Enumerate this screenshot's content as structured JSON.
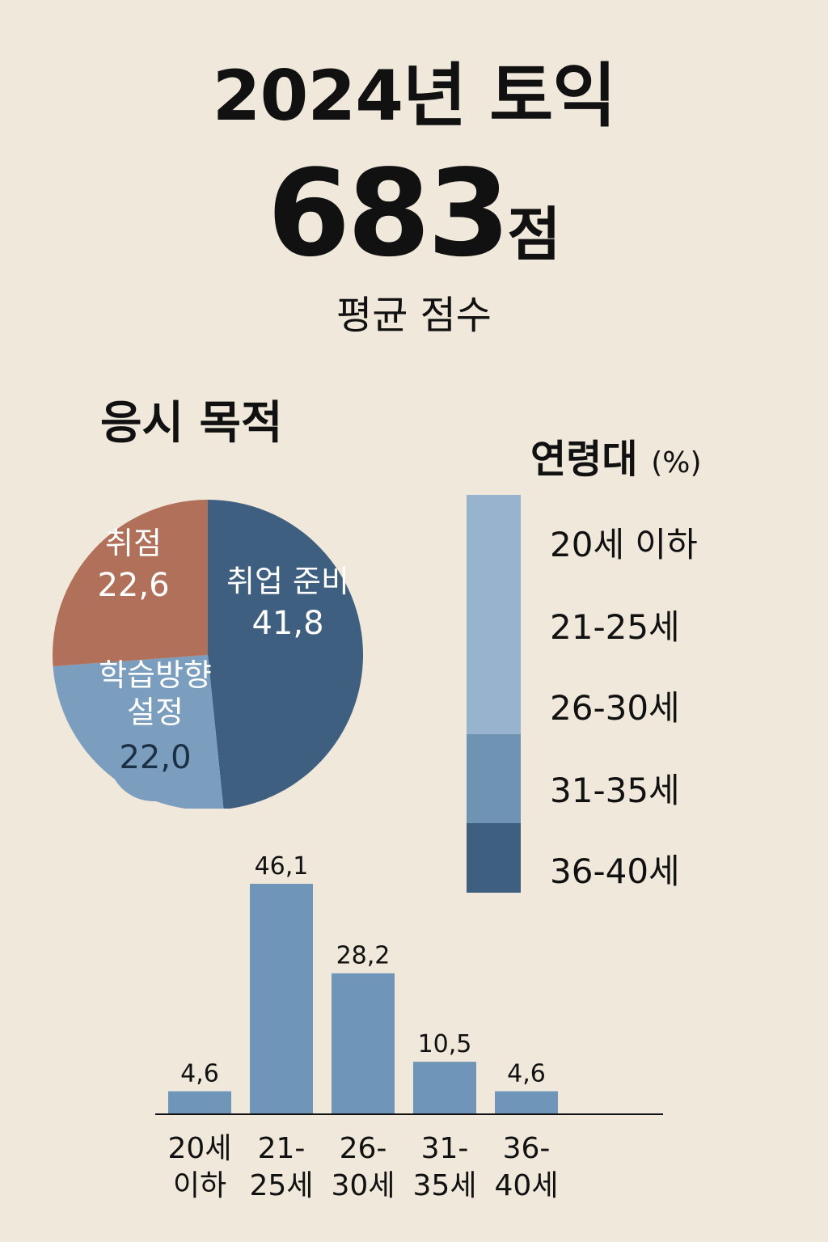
{
  "title": "2024년 토익",
  "score": {
    "value": "683",
    "unit": "점"
  },
  "subtitle": "평균 점수",
  "colors": {
    "background": "#f1e8dc",
    "pie_job_prep": "#3f5f80",
    "pie_score": "#b0705a",
    "pie_direction": "#7b9ebf",
    "bar": "#6f95b8",
    "scale_light": "#97b3cd",
    "scale_mid": "#6f93b3",
    "scale_dark": "#3f5f80"
  },
  "pie": {
    "heading": "응시 목적",
    "slices": [
      {
        "label": "취업 준비",
        "value": 41.8,
        "value_text": "41,8",
        "color": "#3f5f80",
        "text_color": "#ffffff"
      },
      {
        "label": "학습방향 설정",
        "value": 22.0,
        "value_text": "22,0",
        "color": "#7b9ebf",
        "text_color": "#ffffff"
      },
      {
        "label": "취점",
        "value": 22.6,
        "value_text": "22,6",
        "color": "#b0705a",
        "text_color": "#ffffff"
      }
    ]
  },
  "age_legend": {
    "heading": "연령대",
    "unit": "(%)",
    "items": [
      "20세 이하",
      "21-25세",
      "26-30세",
      "31-35세",
      "36-40세"
    ]
  },
  "chart_data": {
    "type": "bar",
    "categories": [
      "20세 이하",
      "21-25세",
      "26-30세",
      "31-35세",
      "36-40세"
    ],
    "category_lines": [
      [
        "20세",
        "이하"
      ],
      [
        "21-",
        "25세"
      ],
      [
        "26-",
        "30세"
      ],
      [
        "31-",
        "35세"
      ],
      [
        "36-",
        "40세"
      ]
    ],
    "values": [
      4.6,
      46.1,
      28.2,
      10.5,
      4.6
    ],
    "value_labels": [
      "4,6",
      "46,1",
      "28,2",
      "10,5",
      "4,6"
    ],
    "title": "",
    "xlabel": "",
    "ylabel": ""
  }
}
